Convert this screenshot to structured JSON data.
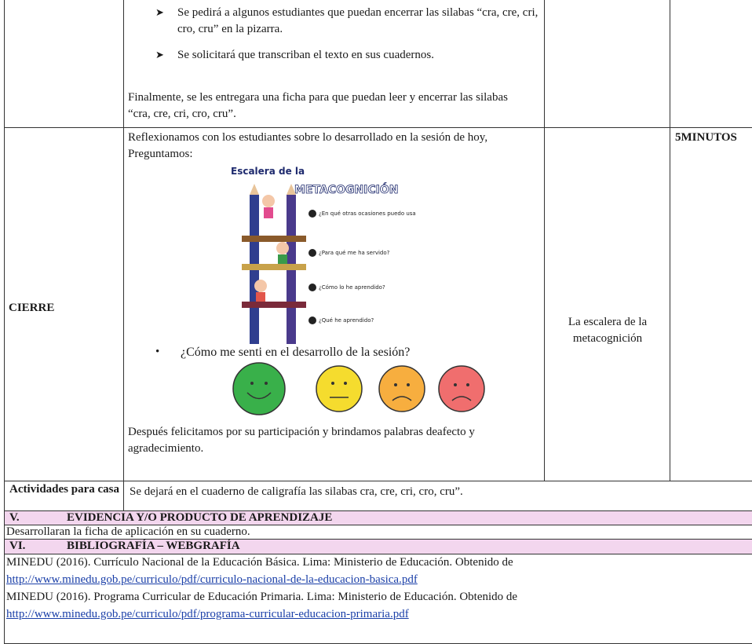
{
  "table": {
    "rows": [
      {
        "bullets": [
          "Se pedirá a algunos estudiantes que puedan encerrar las silabas “cra, cre, cri, cro, cru” en la pizarra.",
          "Se solicitará que transcriban el texto en sus cuadernos."
        ],
        "paragraph": "Finalmente, se les entregara una ficha para que puedan leer y encerrar las silabas “cra, cre, cri, cro, cru”."
      },
      {
        "stage": "CIERRE",
        "intro": "Reflexionamos con los estudiantes sobre lo desarrollado en la sesión de hoy, Preguntamos:",
        "image": {
          "title_top": "Escalera de la",
          "title_main": "METACOGNICIÓN",
          "questions": [
            "¿En qué otras ocasiones puedo usarlo?",
            "¿Para qué me ha servido?",
            "¿Cómo lo he aprendido?",
            "¿Qué he aprendido?"
          ]
        },
        "question": "¿Cómo me senti en el desarrollo de la sesión?",
        "closing": "Después felicitamos por su participación y brindamos palabras deafecto y agradecimiento.",
        "resource": "La escalera de la metacognición",
        "time": "5MINUTOS"
      },
      {
        "stage": "Actividades para casa",
        "activity": "Se dejará en el cuaderno de caligrafía las silabas cra, cre, cri, cro, cru”."
      }
    ]
  },
  "sections": [
    {
      "number": "V.",
      "title": "EVIDENCIA Y/O PRODUCTO DE APRENDIZAJE",
      "lines": [
        "Desarrollaran la ficha de aplicación en su cuaderno."
      ]
    },
    {
      "number": "VI.",
      "title": "BIBLIOGRAFÍA – WEBGRAFÍA",
      "references": [
        {
          "text": "MINEDU (2016). Currículo Nacional de la Educación Básica. Lima: Ministerio de Educación. Obtenido de",
          "url": "http://www.minedu.gob.pe/curriculo/pdf/curriculo-nacional-de-la-educacion-basica.pdf"
        },
        {
          "text": "MINEDU (2016). Programa Curricular de Educación Primaria. Lima: Ministerio de Educación. Obtenido de",
          "url": "http://www.minedu.gob.pe/curriculo/pdf/programa-curricular-educacion-primaria.pdf"
        }
      ]
    }
  ]
}
